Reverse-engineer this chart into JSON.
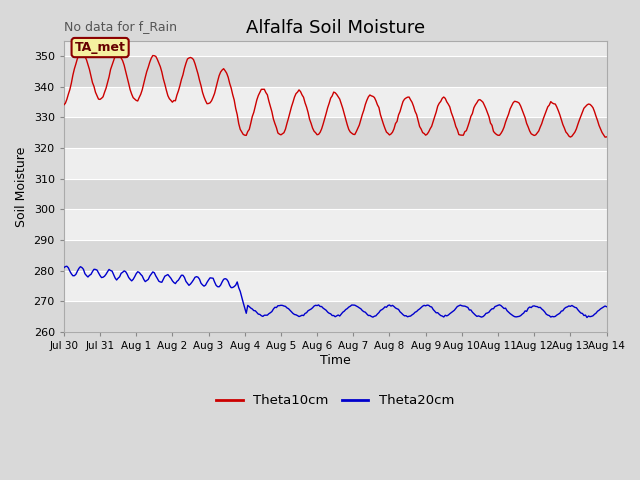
{
  "title": "Alfalfa Soil Moisture",
  "top_left_text": "No data for f_Rain",
  "xlabel": "Time",
  "ylabel": "Soil Moisture",
  "ylim": [
    260,
    355
  ],
  "yticks": [
    260,
    270,
    280,
    290,
    300,
    310,
    320,
    330,
    340,
    350
  ],
  "fig_bg_color": "#d9d9d9",
  "plot_bg_color": "#e8e8e8",
  "band_light": "#eeeeee",
  "band_dark": "#d8d8d8",
  "line1_color": "#cc0000",
  "line2_color": "#0000cc",
  "legend_labels": [
    "Theta10cm",
    "Theta20cm"
  ],
  "box_label": "TA_met",
  "box_facecolor": "#f5f0a0",
  "box_edgecolor": "#8b0000",
  "title_fontsize": 13,
  "axis_fontsize": 9,
  "tick_fontsize": 8,
  "xtick_labels": [
    "Jul 30",
    "Jul 31",
    "Aug 1",
    "Aug 2",
    "Aug 3",
    "Aug 4",
    "Aug 5",
    "Aug 6",
    "Aug 7",
    "Aug 8",
    "Aug 9",
    "Aug 10",
    "Aug 11",
    "Aug 12",
    "Aug 13",
    "Aug 14"
  ]
}
